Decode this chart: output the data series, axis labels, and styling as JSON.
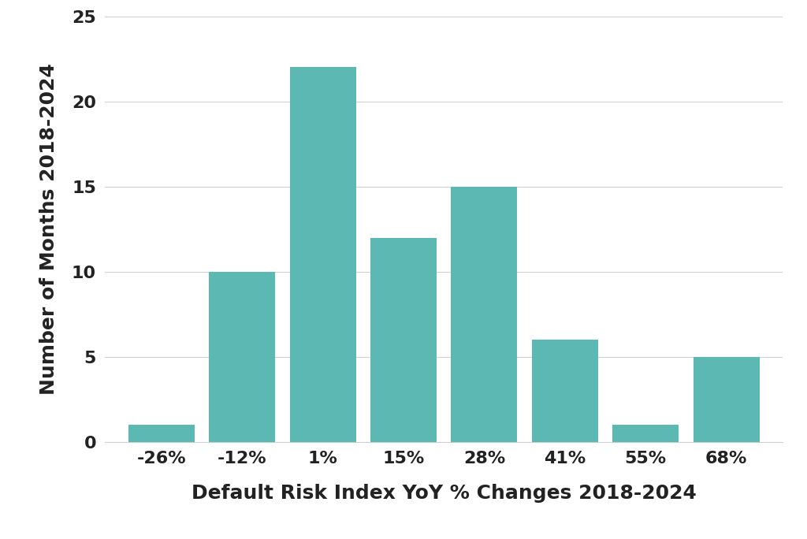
{
  "categories": [
    "-26%",
    "-12%",
    "1%",
    "15%",
    "28%",
    "41%",
    "55%",
    "68%"
  ],
  "values": [
    1,
    10,
    22,
    12,
    15,
    6,
    1,
    5
  ],
  "bar_color": "#5cb8b2",
  "bar_edge_color": "none",
  "xlabel": "Default Risk Index YoY % Changes 2018-2024",
  "ylabel": "Number of Months 2018-2024",
  "ylim": [
    0,
    25
  ],
  "yticks": [
    0,
    5,
    10,
    15,
    20,
    25
  ],
  "background_color": "#ffffff",
  "grid_color": "#d0d0d0",
  "xlabel_fontsize": 18,
  "ylabel_fontsize": 18,
  "tick_fontsize": 16,
  "bar_width": 0.82
}
